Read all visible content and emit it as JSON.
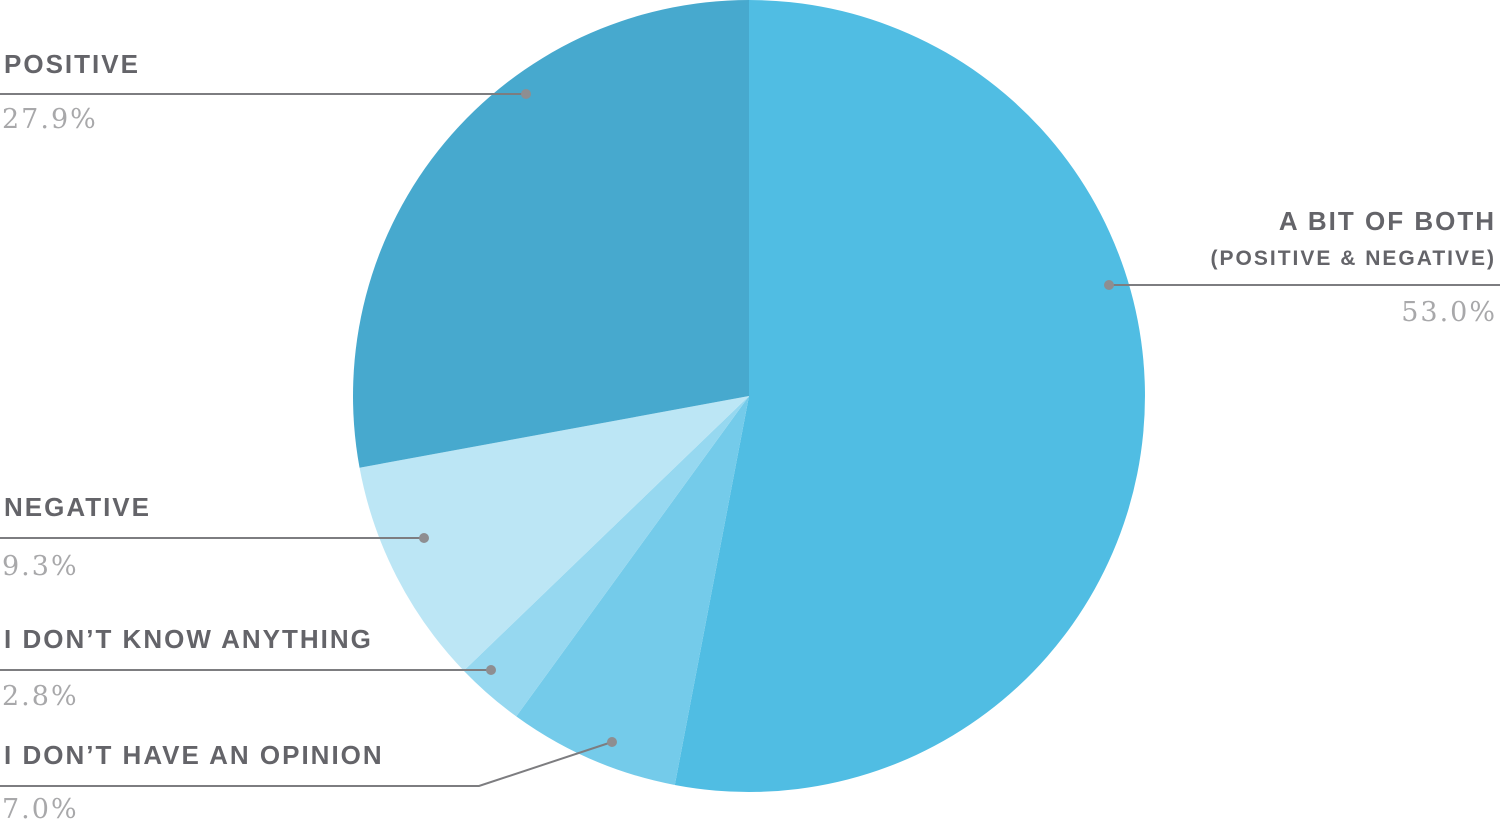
{
  "chart_data": {
    "type": "pie",
    "start_angle_deg": 0,
    "direction": "clockwise",
    "slices": [
      {
        "name": "A BIT OF BOTH",
        "sublabel": "(POSITIVE & NEGATIVE)",
        "value": 53.0,
        "display": "53.0%",
        "color": "#50bde3"
      },
      {
        "name": "I DON’T HAVE AN OPINION",
        "value": 7.0,
        "display": "7.0%",
        "color": "#74cbea"
      },
      {
        "name": "I DON’T KNOW ANYTHING",
        "value": 2.8,
        "display": "2.8%",
        "color": "#96d8f0"
      },
      {
        "name": "NEGATIVE",
        "value": 9.3,
        "display": "9.3%",
        "color": "#bce6f5"
      },
      {
        "name": "POSITIVE",
        "value": 27.9,
        "display": "27.9%",
        "color": "#47a9ce"
      }
    ]
  }
}
